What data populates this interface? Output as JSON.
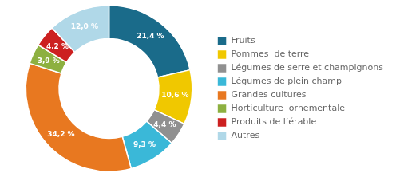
{
  "chart_data": {
    "type": "doughnut",
    "categories": [
      "Fruits",
      "Pommes  de terre",
      "Légumes de serre et champignons",
      "Légumes de plein champ",
      "Grandes cultures",
      "Horticulture  ornementale",
      "Produits de l’érable",
      "Autres"
    ],
    "values": [
      21.4,
      10.6,
      4.4,
      9.3,
      34.2,
      3.9,
      4.2,
      12.0
    ],
    "value_labels": [
      "21,4 %",
      "10,6 %",
      "4,4 %",
      "9,3 %",
      "34,2 %",
      "3,9 %",
      "4,2 %",
      "12,0 %"
    ],
    "colors": [
      "#1a6b8a",
      "#f0c800",
      "#909090",
      "#3ab8d8",
      "#e87820",
      "#8db040",
      "#cc2020",
      "#b0d8e8"
    ],
    "data_labels": true,
    "legend": "right"
  }
}
